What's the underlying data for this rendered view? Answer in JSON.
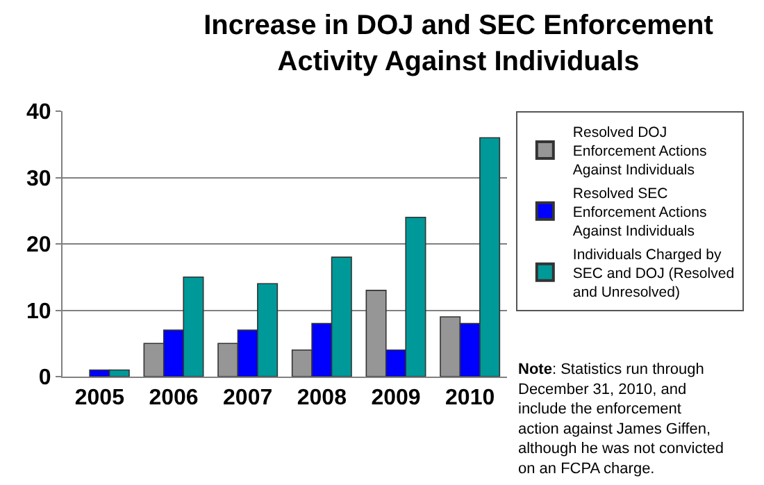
{
  "chart_data": {
    "type": "bar",
    "title": "Increase in DOJ and SEC Enforcement Activity Against Individuals",
    "categories": [
      "2005",
      "2006",
      "2007",
      "2008",
      "2009",
      "2010"
    ],
    "series": [
      {
        "name": "Resolved DOJ Enforcement Actions Against Individuals",
        "color": "#969696",
        "values": [
          null,
          5,
          5,
          4,
          13,
          9
        ]
      },
      {
        "name": "Resolved SEC Enforcement Actions Against Individuals",
        "color": "#0000ff",
        "values": [
          1,
          7,
          7,
          8,
          4,
          8
        ]
      },
      {
        "name": "Individuals Charged by SEC and DOJ (Resolved and Unresolved)",
        "color": "#009999",
        "values": [
          1,
          15,
          14,
          18,
          24,
          36
        ]
      }
    ],
    "ylim": [
      0,
      40
    ],
    "yticks": [
      0,
      10,
      20,
      30,
      40
    ],
    "grid": "y",
    "legend": "right",
    "annotations": [
      "Note: Statistics run through December 31, 2010, and include the enforcement action against James Giffen, although he was not convicted on an FCPA charge."
    ]
  }
}
